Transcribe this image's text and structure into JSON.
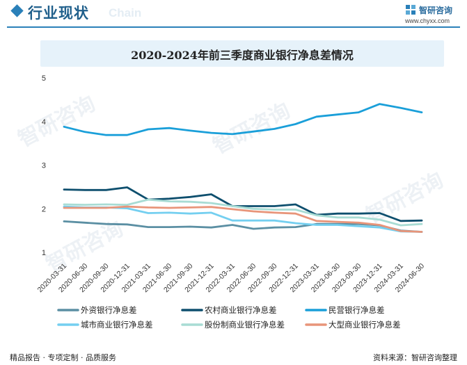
{
  "header": {
    "title": "行业现状",
    "watermark": "Chain"
  },
  "brand": {
    "name": "智研咨询",
    "url": "www.chyxx.com",
    "watermark": "智研咨询"
  },
  "footer": {
    "left": "精品报告 · 专项定制 · 品质服务",
    "source": "资料来源：智研咨询整理"
  },
  "chart_data": {
    "type": "line",
    "title": "2020-2024年前三季度商业银行净息差情况",
    "xlabel": "",
    "ylabel": "",
    "ylim": [
      1,
      5
    ],
    "yticks": [
      "1",
      "2",
      "3",
      "4",
      "5"
    ],
    "grid": false,
    "legend_position": "bottom",
    "categories": [
      "2020-03-31",
      "2020-06-30",
      "2020-09-30",
      "2020-12-31",
      "2021-03-31",
      "2021-06-30",
      "2021-09-30",
      "2021-12-31",
      "2022-03-31",
      "2022-06-30",
      "2022-09-30",
      "2022-12-31",
      "2023-03-31",
      "2023-06-30",
      "2023-09-30",
      "2023-12-31",
      "2024-03-31",
      "2024-06-30"
    ],
    "series": [
      {
        "name": "外资银行净息差",
        "color": "#5b8fa3",
        "values": [
          1.71,
          1.68,
          1.65,
          1.64,
          1.58,
          1.58,
          1.59,
          1.57,
          1.63,
          1.54,
          1.57,
          1.58,
          1.65,
          1.65,
          1.65,
          1.62,
          1.5,
          1.47
        ]
      },
      {
        "name": "农村商业银行净息差",
        "color": "#0e4f6e",
        "values": [
          2.44,
          2.43,
          2.43,
          2.49,
          2.21,
          2.23,
          2.27,
          2.33,
          2.06,
          2.06,
          2.06,
          2.1,
          1.86,
          1.89,
          1.89,
          1.9,
          1.72,
          1.73
        ]
      },
      {
        "name": "民营银行净息差",
        "color": "#1a9fd9",
        "values": [
          3.88,
          3.76,
          3.69,
          3.69,
          3.82,
          3.85,
          3.79,
          3.74,
          3.71,
          3.77,
          3.83,
          3.94,
          4.11,
          4.16,
          4.21,
          4.4,
          4.31,
          4.21
        ]
      },
      {
        "name": "城市商业银行净息差",
        "color": "#74cff0",
        "values": [
          2.05,
          2.03,
          2.03,
          2.01,
          1.9,
          1.91,
          1.89,
          1.91,
          1.73,
          1.73,
          1.73,
          1.67,
          1.63,
          1.63,
          1.6,
          1.57,
          1.48,
          1.47
        ]
      },
      {
        "name": "股份制商业银行净息差",
        "color": "#a8dcd4",
        "values": [
          2.1,
          2.09,
          2.1,
          2.09,
          2.21,
          2.17,
          2.16,
          2.13,
          2.06,
          2.0,
          1.98,
          1.98,
          1.85,
          1.8,
          1.8,
          1.75,
          1.62,
          1.65
        ]
      },
      {
        "name": "大型商业银行净息差",
        "color": "#e8957a",
        "values": [
          2.02,
          2.02,
          2.02,
          2.05,
          2.03,
          2.02,
          2.03,
          2.04,
          1.99,
          1.94,
          1.91,
          1.89,
          1.72,
          1.7,
          1.68,
          1.63,
          1.49,
          1.47
        ]
      }
    ]
  }
}
